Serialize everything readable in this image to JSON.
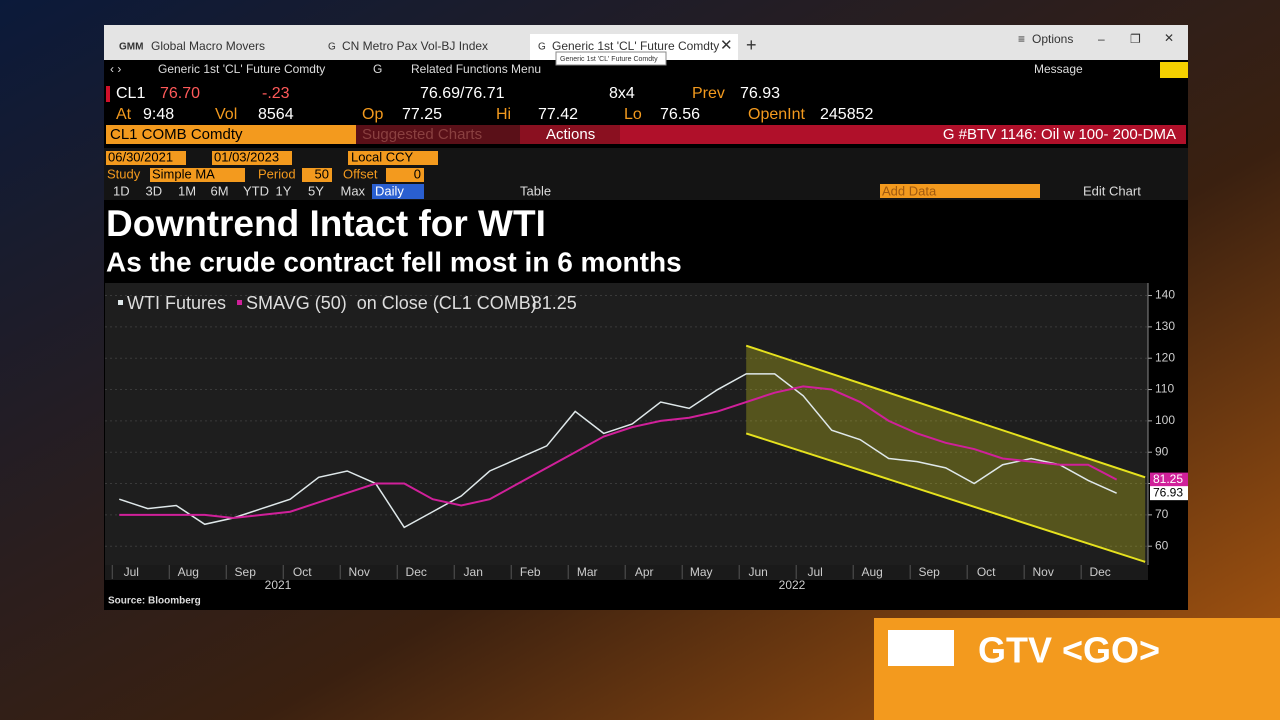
{
  "tabs": [
    {
      "prefix": "GMM",
      "label": "Global Macro Movers"
    },
    {
      "prefix": "G",
      "label": "CN Metro Pax Vol-BJ Index"
    },
    {
      "prefix": "G",
      "label": "Generic 1st 'CL' Future Comdty"
    }
  ],
  "tooltip": "Generic 1st 'CL' Future Comdty",
  "window": {
    "options": "Options"
  },
  "toolbar": {
    "security": "Generic 1st 'CL' Future Comdty",
    "g": "G",
    "related": "Related Functions Menu",
    "message": "Message"
  },
  "quote": {
    "ticker": "CL1",
    "last": "76.70",
    "change": "-.23",
    "bidask": "76.69/76.71",
    "size": "8x4",
    "prev_label": "Prev",
    "prev": "76.93",
    "at_label": "At",
    "time": "9:48",
    "vol_label": "Vol",
    "vol": "8564",
    "op_label": "Op",
    "op": "77.25",
    "hi_label": "Hi",
    "hi": "77.42",
    "lo_label": "Lo",
    "lo": "76.56",
    "oi_label": "OpenInt",
    "oi": "245852"
  },
  "bar": {
    "security": "CL1 COMB Comdty",
    "suggested": "Suggested Charts",
    "actions": "Actions",
    "story": "G #BTV 1146: Oil w 100- 200-DMA"
  },
  "controls": {
    "start": "06/30/2021",
    "end": "01/03/2023",
    "ccy": "Local CCY",
    "study_label": "Study",
    "study": "Simple MA",
    "period_label": "Period",
    "period": "50",
    "offset_label": "Offset",
    "offset": "0",
    "ranges": [
      "1D",
      "3D",
      "1M",
      "6M",
      "YTD",
      "1Y",
      "5Y",
      "Max"
    ],
    "frequency": "Daily",
    "table": "Table",
    "add_data": "Add Data",
    "edit_chart": "Edit Chart"
  },
  "banner": "GTV <GO>",
  "chart_data": {
    "type": "line",
    "title": "Downtrend Intact for WTI",
    "subtitle": "As the crude contract fell most in 6 months",
    "categories": [
      "Jul",
      null,
      "Aug",
      null,
      "Sep",
      null,
      "Oct",
      null,
      "Nov",
      null,
      "Dec",
      null,
      "Jan",
      null,
      "Feb",
      null,
      "Mar",
      null,
      "Apr",
      null,
      "May",
      null,
      "Jun",
      null,
      "Jul",
      null,
      "Aug",
      null,
      "Sep",
      null,
      "Oct",
      null,
      "Nov",
      null,
      "Dec",
      null
    ],
    "years": [
      "2021",
      "2022"
    ],
    "series": [
      {
        "name": "WTI Futures",
        "color": "#dfe8ea",
        "values": [
          75,
          72,
          73,
          67,
          69,
          72,
          75,
          82,
          84,
          80,
          66,
          71,
          76,
          84,
          88,
          92,
          103,
          96,
          99,
          106,
          104,
          110,
          115,
          115,
          108,
          97,
          94,
          88,
          87,
          85,
          80,
          86,
          88,
          86,
          81,
          76.93
        ]
      },
      {
        "name": "SMAVG (50)  on Close (CL1 COMB)",
        "color": "#d0209a",
        "values": [
          70,
          70,
          70,
          70,
          69,
          70,
          71,
          74,
          77,
          80,
          80,
          75,
          73,
          75,
          80,
          85,
          90,
          95,
          98,
          100,
          101,
          103,
          106,
          109,
          111,
          110,
          106,
          100,
          96,
          93,
          91,
          88,
          87,
          86,
          86,
          81.25
        ]
      }
    ],
    "channel": {
      "color": "#e6e21e",
      "x": [
        22,
        36
      ],
      "upper": [
        124,
        82
      ],
      "lower": [
        96,
        55
      ]
    },
    "ylim": [
      54,
      144
    ],
    "yticks": [
      60,
      70,
      80,
      90,
      100,
      110,
      120,
      130,
      140
    ],
    "grid": true,
    "source": "Source: Bloomberg"
  }
}
